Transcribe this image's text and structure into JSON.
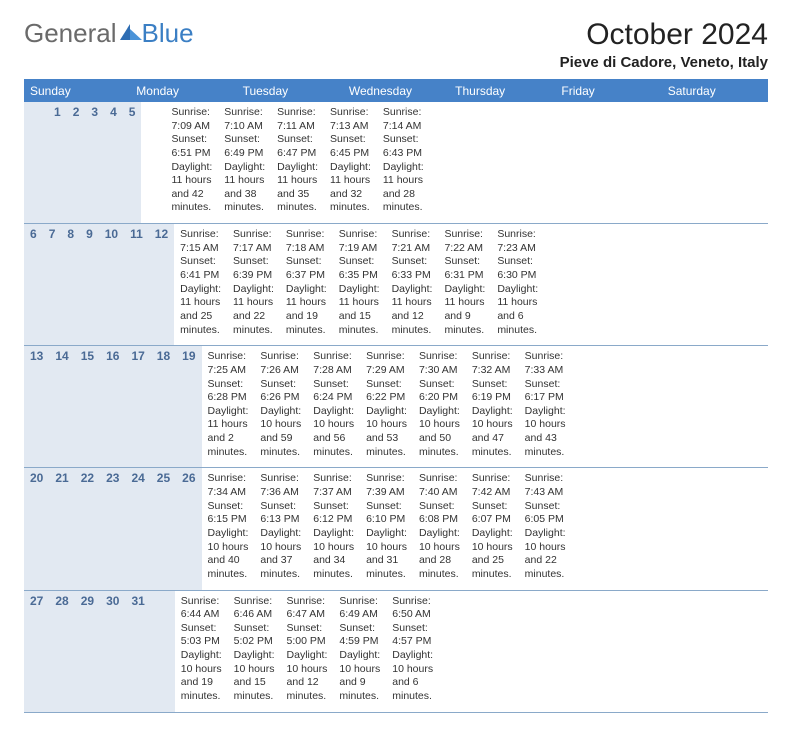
{
  "logo": {
    "general": "General",
    "blue": "Blue"
  },
  "title": {
    "month": "October 2024",
    "location": "Pieve di Cadore, Veneto, Italy"
  },
  "colors": {
    "header_bg": "#4682c8",
    "band_bg": "#e2e9f2",
    "daynum_color": "#4a6a95",
    "border_color": "#8aa9c9"
  },
  "day_names": [
    "Sunday",
    "Monday",
    "Tuesday",
    "Wednesday",
    "Thursday",
    "Friday",
    "Saturday"
  ],
  "weeks": [
    {
      "nums": [
        "",
        "",
        "1",
        "2",
        "3",
        "4",
        "5"
      ],
      "cells": [
        {},
        {},
        {
          "sunrise": "Sunrise: 7:09 AM",
          "sunset": "Sunset: 6:51 PM",
          "daylight": "Daylight: 11 hours and 42 minutes."
        },
        {
          "sunrise": "Sunrise: 7:10 AM",
          "sunset": "Sunset: 6:49 PM",
          "daylight": "Daylight: 11 hours and 38 minutes."
        },
        {
          "sunrise": "Sunrise: 7:11 AM",
          "sunset": "Sunset: 6:47 PM",
          "daylight": "Daylight: 11 hours and 35 minutes."
        },
        {
          "sunrise": "Sunrise: 7:13 AM",
          "sunset": "Sunset: 6:45 PM",
          "daylight": "Daylight: 11 hours and 32 minutes."
        },
        {
          "sunrise": "Sunrise: 7:14 AM",
          "sunset": "Sunset: 6:43 PM",
          "daylight": "Daylight: 11 hours and 28 minutes."
        }
      ]
    },
    {
      "nums": [
        "6",
        "7",
        "8",
        "9",
        "10",
        "11",
        "12"
      ],
      "cells": [
        {
          "sunrise": "Sunrise: 7:15 AM",
          "sunset": "Sunset: 6:41 PM",
          "daylight": "Daylight: 11 hours and 25 minutes."
        },
        {
          "sunrise": "Sunrise: 7:17 AM",
          "sunset": "Sunset: 6:39 PM",
          "daylight": "Daylight: 11 hours and 22 minutes."
        },
        {
          "sunrise": "Sunrise: 7:18 AM",
          "sunset": "Sunset: 6:37 PM",
          "daylight": "Daylight: 11 hours and 19 minutes."
        },
        {
          "sunrise": "Sunrise: 7:19 AM",
          "sunset": "Sunset: 6:35 PM",
          "daylight": "Daylight: 11 hours and 15 minutes."
        },
        {
          "sunrise": "Sunrise: 7:21 AM",
          "sunset": "Sunset: 6:33 PM",
          "daylight": "Daylight: 11 hours and 12 minutes."
        },
        {
          "sunrise": "Sunrise: 7:22 AM",
          "sunset": "Sunset: 6:31 PM",
          "daylight": "Daylight: 11 hours and 9 minutes."
        },
        {
          "sunrise": "Sunrise: 7:23 AM",
          "sunset": "Sunset: 6:30 PM",
          "daylight": "Daylight: 11 hours and 6 minutes."
        }
      ]
    },
    {
      "nums": [
        "13",
        "14",
        "15",
        "16",
        "17",
        "18",
        "19"
      ],
      "cells": [
        {
          "sunrise": "Sunrise: 7:25 AM",
          "sunset": "Sunset: 6:28 PM",
          "daylight": "Daylight: 11 hours and 2 minutes."
        },
        {
          "sunrise": "Sunrise: 7:26 AM",
          "sunset": "Sunset: 6:26 PM",
          "daylight": "Daylight: 10 hours and 59 minutes."
        },
        {
          "sunrise": "Sunrise: 7:28 AM",
          "sunset": "Sunset: 6:24 PM",
          "daylight": "Daylight: 10 hours and 56 minutes."
        },
        {
          "sunrise": "Sunrise: 7:29 AM",
          "sunset": "Sunset: 6:22 PM",
          "daylight": "Daylight: 10 hours and 53 minutes."
        },
        {
          "sunrise": "Sunrise: 7:30 AM",
          "sunset": "Sunset: 6:20 PM",
          "daylight": "Daylight: 10 hours and 50 minutes."
        },
        {
          "sunrise": "Sunrise: 7:32 AM",
          "sunset": "Sunset: 6:19 PM",
          "daylight": "Daylight: 10 hours and 47 minutes."
        },
        {
          "sunrise": "Sunrise: 7:33 AM",
          "sunset": "Sunset: 6:17 PM",
          "daylight": "Daylight: 10 hours and 43 minutes."
        }
      ]
    },
    {
      "nums": [
        "20",
        "21",
        "22",
        "23",
        "24",
        "25",
        "26"
      ],
      "cells": [
        {
          "sunrise": "Sunrise: 7:34 AM",
          "sunset": "Sunset: 6:15 PM",
          "daylight": "Daylight: 10 hours and 40 minutes."
        },
        {
          "sunrise": "Sunrise: 7:36 AM",
          "sunset": "Sunset: 6:13 PM",
          "daylight": "Daylight: 10 hours and 37 minutes."
        },
        {
          "sunrise": "Sunrise: 7:37 AM",
          "sunset": "Sunset: 6:12 PM",
          "daylight": "Daylight: 10 hours and 34 minutes."
        },
        {
          "sunrise": "Sunrise: 7:39 AM",
          "sunset": "Sunset: 6:10 PM",
          "daylight": "Daylight: 10 hours and 31 minutes."
        },
        {
          "sunrise": "Sunrise: 7:40 AM",
          "sunset": "Sunset: 6:08 PM",
          "daylight": "Daylight: 10 hours and 28 minutes."
        },
        {
          "sunrise": "Sunrise: 7:42 AM",
          "sunset": "Sunset: 6:07 PM",
          "daylight": "Daylight: 10 hours and 25 minutes."
        },
        {
          "sunrise": "Sunrise: 7:43 AM",
          "sunset": "Sunset: 6:05 PM",
          "daylight": "Daylight: 10 hours and 22 minutes."
        }
      ]
    },
    {
      "nums": [
        "27",
        "28",
        "29",
        "30",
        "31",
        "",
        ""
      ],
      "cells": [
        {
          "sunrise": "Sunrise: 6:44 AM",
          "sunset": "Sunset: 5:03 PM",
          "daylight": "Daylight: 10 hours and 19 minutes."
        },
        {
          "sunrise": "Sunrise: 6:46 AM",
          "sunset": "Sunset: 5:02 PM",
          "daylight": "Daylight: 10 hours and 15 minutes."
        },
        {
          "sunrise": "Sunrise: 6:47 AM",
          "sunset": "Sunset: 5:00 PM",
          "daylight": "Daylight: 10 hours and 12 minutes."
        },
        {
          "sunrise": "Sunrise: 6:49 AM",
          "sunset": "Sunset: 4:59 PM",
          "daylight": "Daylight: 10 hours and 9 minutes."
        },
        {
          "sunrise": "Sunrise: 6:50 AM",
          "sunset": "Sunset: 4:57 PM",
          "daylight": "Daylight: 10 hours and 6 minutes."
        },
        {},
        {}
      ]
    }
  ]
}
